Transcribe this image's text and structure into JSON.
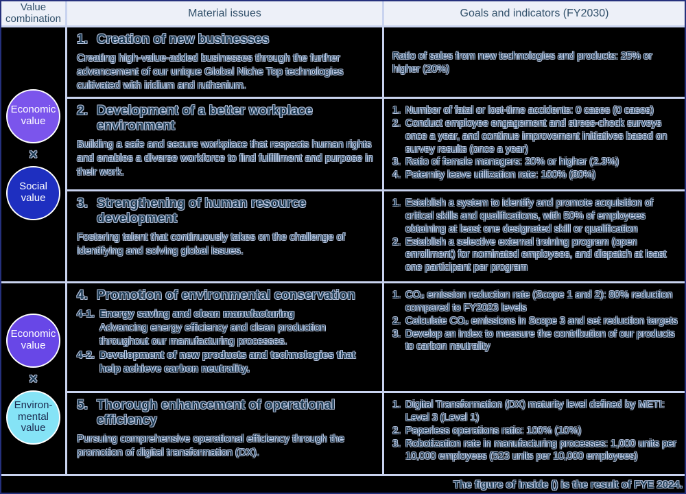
{
  "table": {
    "headers": {
      "value_combination": "Value\ncombination",
      "material_issues": "Material issues",
      "goals_indicators": "Goals and indicators (FY2030)"
    },
    "footer_note": "The figure of inside () is the result of FYE 2024."
  },
  "colors": {
    "cell_background": "#000000",
    "grid_line": "#c9d3ef",
    "outer_border": "#25307c",
    "header_background": "#edf0f8",
    "text_dark": "#1d3a52",
    "text_outline": "#c4d2ee"
  },
  "value_groups": [
    {
      "operator": "×",
      "circles": [
        {
          "name": "economic-value",
          "label": "Economic\nvalue",
          "bg": "#7b55ec",
          "fg": "#ffffff"
        },
        {
          "name": "social-value",
          "label": "Social\nvalue",
          "bg": "#1e2fc0",
          "fg": "#ffffff"
        }
      ]
    },
    {
      "operator": "×",
      "circles": [
        {
          "name": "economic-value",
          "label": "Economic\nvalue",
          "bg": "#6847e7",
          "fg": "#ffffff"
        },
        {
          "name": "environmental-value",
          "label": "Environ-\nmental\nvalue",
          "bg": "#85e3f6",
          "fg": "#1b2b50"
        }
      ]
    }
  ],
  "rows": [
    {
      "number": "1.",
      "title": "Creation of new businesses",
      "description": "Creating high-value-added businesses through the further advancement of our unique Global Niche Top technologies cultivated with iridium and ruthenium.",
      "goals": [
        {
          "num": "",
          "text": "Ratio of sales from new technologies and products: 25% or higher (20%)"
        }
      ]
    },
    {
      "number": "2.",
      "title": "Development of a better workplace environment",
      "description": "Building a safe and secure workplace that respects human rights and enables a diverse workforce to find fulfillment and purpose in their work.",
      "goals": [
        {
          "num": "1.",
          "text": "Number of fatal or lost-time accidents: 0 cases (0 cases)"
        },
        {
          "num": "2.",
          "text": "Conduct employee engagement and stress-check surveys once a year, and continue improvement initiatives based on survey results (once a year)"
        },
        {
          "num": "3.",
          "text": "Ratio of female managers: 20% or higher (2.3%)"
        },
        {
          "num": "4.",
          "text": "Paternity leave utilization rate: 100% (80%)"
        }
      ]
    },
    {
      "number": "3.",
      "title": "Strengthening of human resource development",
      "description": "Fostering talent that continuously takes on the challenge of identifying and solving global issues.",
      "goals": [
        {
          "num": "1.",
          "text": "Establish a system to identify and promote acquisition of critical skills and qualifications, with 50% of employees obtaining at least one designated skill or qualification"
        },
        {
          "num": "2.",
          "text": "Establish a selective external training program (open enrollment) for nominated employees, and dispatch at least one participant per program"
        }
      ]
    },
    {
      "number": "4.",
      "title": "Promotion of environmental conservation",
      "description": "",
      "subitems": [
        {
          "num": "4-1.",
          "heading": "Energy saving and clean manufacturing",
          "detail": "Advancing energy efficiency and clean production throughout our manufacturing processes."
        },
        {
          "num": "4-2.",
          "heading": "Development of new products and technologies that help achieve carbon neutrality.",
          "detail": ""
        }
      ],
      "goals": [
        {
          "num": "1.",
          "text": "CO₂ emission reduction rate (Scope 1 and 2): 80% reduction compared to FY2023 levels"
        },
        {
          "num": "2.",
          "text": "Calculate CO₂ emissions in Scope 3 and set reduction targets"
        },
        {
          "num": "3.",
          "text": "Develop an index to measure the contribution of our products to carbon neutrality"
        }
      ]
    },
    {
      "number": "5.",
      "title": "Thorough enhancement of operational efficiency",
      "description": "Pursuing comprehensive operational efficiency through the promotion of digital transformation (DX).",
      "goals": [
        {
          "num": "1.",
          "text": "Digital Transformation (DX) maturity level defined by METI: Level 3 (Level 1)"
        },
        {
          "num": "2.",
          "text": "Paperless operations ratio: 100% (10%)"
        },
        {
          "num": "3.",
          "text": "Robotization rate in manufacturing processes: 1,000 units per 10,000 employees (523 units per 10,000 employees)"
        }
      ]
    }
  ]
}
